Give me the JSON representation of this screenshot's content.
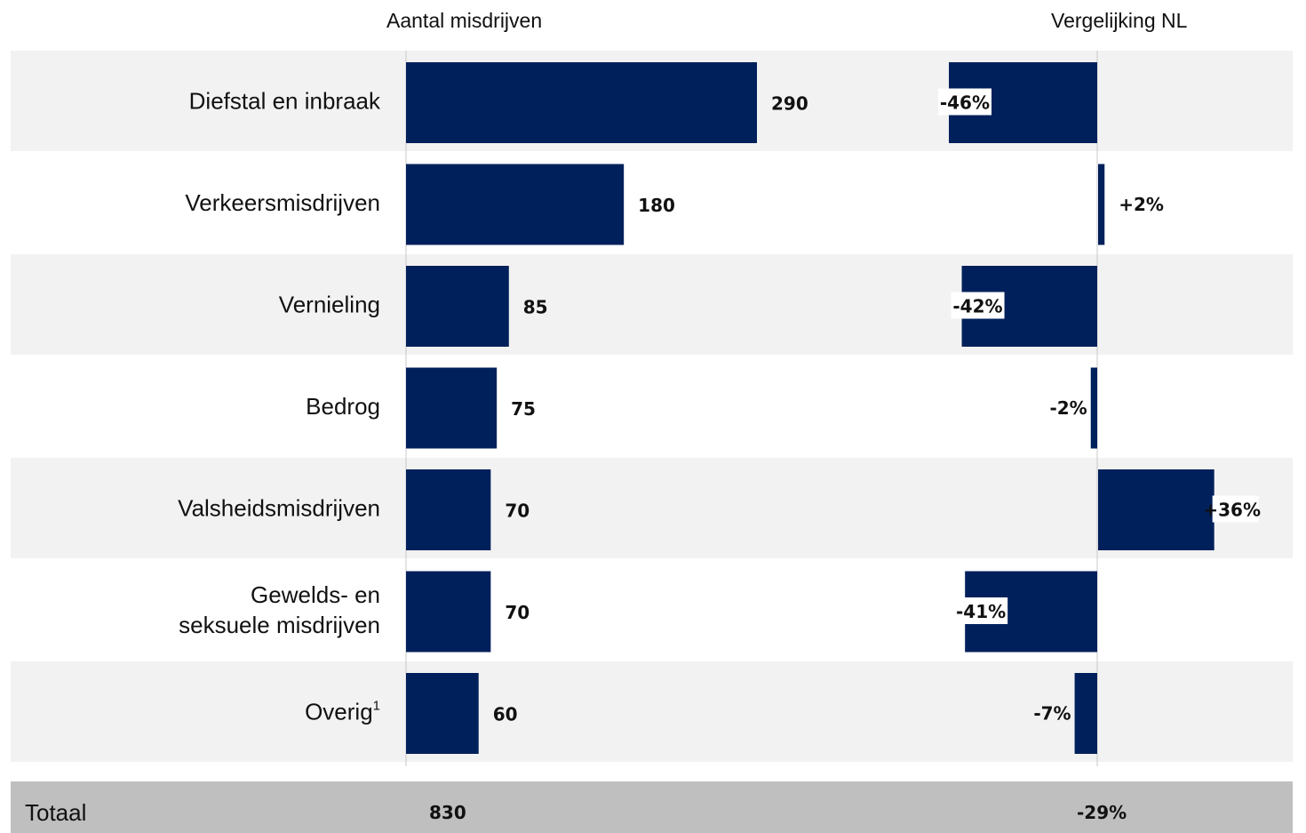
{
  "headers": {
    "left": "Aantal misdrijven",
    "right": "Vergelijking NL"
  },
  "chart_data": {
    "type": "bar",
    "categories": [
      "Diefstal en inbraak",
      "Verkeersmisdrijven",
      "Vernieling",
      "Bedrog",
      "Valsheidsmisdrijven",
      "Gewelds- en\nseksuele misdrijven",
      "Overig"
    ],
    "category_superscripts": [
      "",
      "",
      "",
      "",
      "",
      "",
      "1"
    ],
    "series": [
      {
        "name": "Aantal misdrijven",
        "values": [
          290,
          180,
          85,
          75,
          70,
          70,
          60
        ],
        "labels": [
          "290",
          "180",
          "85",
          "75",
          "70",
          "70",
          "60"
        ]
      },
      {
        "name": "Vergelijking NL",
        "values": [
          -46,
          2,
          -42,
          -2,
          36,
          -41,
          -7
        ],
        "labels": [
          "-46%",
          "+2%",
          "-42%",
          "-2%",
          "+36%",
          "-41%",
          "-7%"
        ]
      }
    ],
    "total": {
      "label": "Totaal",
      "count": "830",
      "comparison": "-29%"
    },
    "colors": {
      "bar": "#00205b",
      "band": "#f2f2f2",
      "total_band": "#bfbfbf",
      "axis": "#c8c8c8"
    }
  }
}
